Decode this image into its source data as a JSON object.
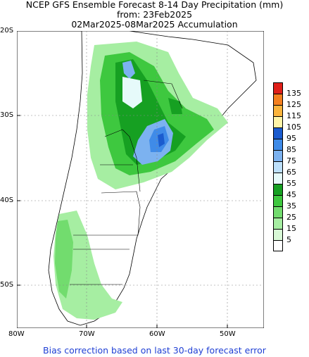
{
  "title": {
    "line1": "NCEP GFS Ensemble Forecast 8-14 Day Precipitation (mm)",
    "line2": "from: 23Feb2025",
    "line3": "02Mar2025-08Mar2025 Accumulation"
  },
  "footer": "Bias correction based on last 30-day forecast error",
  "axes": {
    "lat_labels": [
      "20S",
      "30S",
      "40S",
      "50S"
    ],
    "lon_labels": [
      "80W",
      "70W",
      "60W",
      "50W"
    ]
  },
  "legend": {
    "levels": [
      {
        "label": "135",
        "color": "#e0201a"
      },
      {
        "label": "125",
        "color": "#f5801f"
      },
      {
        "label": "115",
        "color": "#fbb43c"
      },
      {
        "label": "105",
        "color": "#fff5a8"
      },
      {
        "label": "95",
        "color": "#1b5ccf"
      },
      {
        "label": "85",
        "color": "#3f8be8"
      },
      {
        "label": "75",
        "color": "#7cb2f0"
      },
      {
        "label": "65",
        "color": "#bde0fb"
      },
      {
        "label": "55",
        "color": "#e6fafa"
      },
      {
        "label": "45",
        "color": "#16a022"
      },
      {
        "label": "35",
        "color": "#3ec83f"
      },
      {
        "label": "25",
        "color": "#72dc6e"
      },
      {
        "label": "15",
        "color": "#a6eea2"
      },
      {
        "label": "5",
        "color": "#d8f8d6"
      },
      {
        "label": "",
        "color": "#ffffff"
      }
    ]
  }
}
